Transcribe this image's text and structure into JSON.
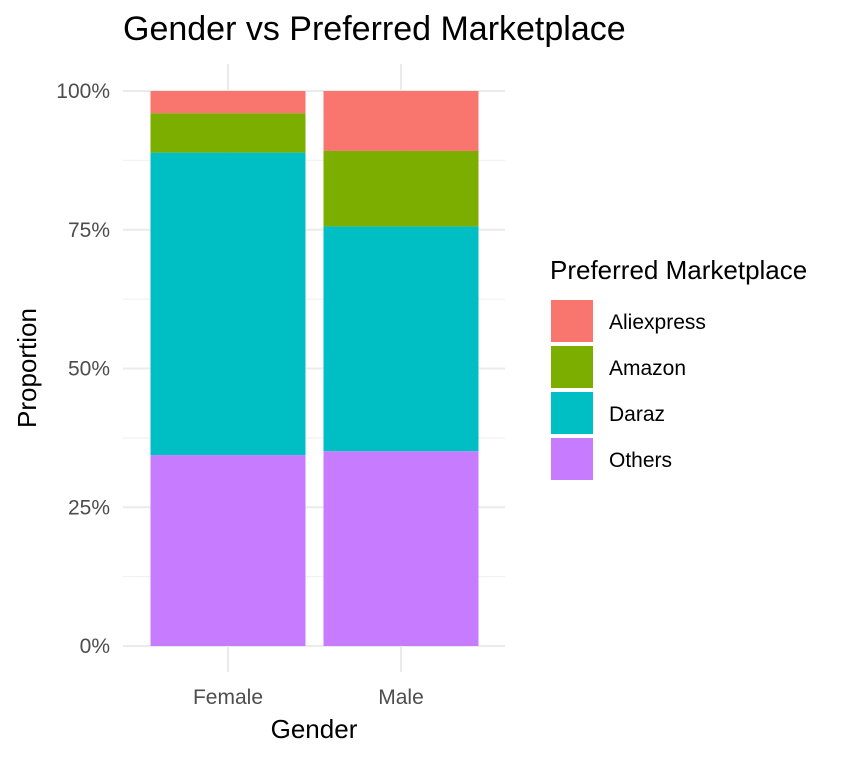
{
  "chart_data": {
    "type": "bar",
    "stacked": true,
    "title": "Gender vs Preferred Marketplace",
    "xlabel": "Gender",
    "ylabel": "Proportion",
    "ylim": [
      0,
      1
    ],
    "y_ticks": [
      0,
      0.25,
      0.5,
      0.75,
      1.0
    ],
    "y_tick_labels": [
      "0%",
      "25%",
      "50%",
      "75%",
      "100%"
    ],
    "grid": true,
    "legend": {
      "title": "Preferred Marketplace",
      "position": "right"
    },
    "categories": [
      "Female",
      "Male"
    ],
    "series": [
      {
        "name": "Others",
        "color": "#C77CFF",
        "values": [
          0.344,
          0.351
        ]
      },
      {
        "name": "Daraz",
        "color": "#00BFC4",
        "values": [
          0.545,
          0.405
        ]
      },
      {
        "name": "Amazon",
        "color": "#7CAE00",
        "values": [
          0.071,
          0.136
        ]
      },
      {
        "name": "Aliexpress",
        "color": "#F8766D",
        "values": [
          0.04,
          0.108
        ]
      }
    ],
    "legend_order": [
      "Aliexpress",
      "Amazon",
      "Daraz",
      "Others"
    ]
  }
}
